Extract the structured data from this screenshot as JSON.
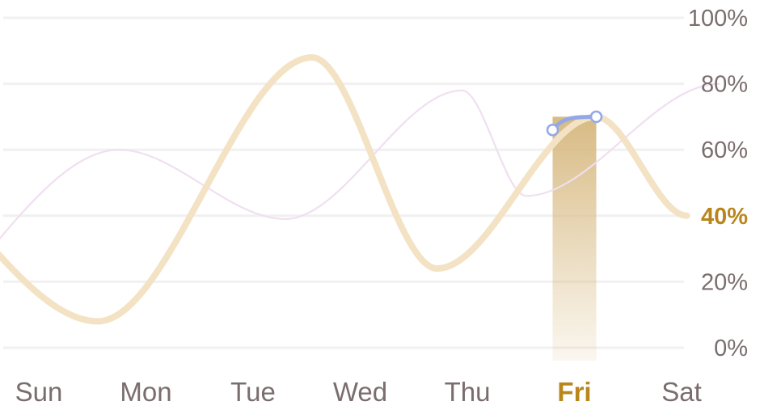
{
  "chart_data": {
    "type": "line",
    "title": "",
    "xlabel": "",
    "ylabel": "",
    "categories": [
      "Sun",
      "Mon",
      "Tue",
      "Wed",
      "Thu",
      "Fri",
      "Sat"
    ],
    "y_ticks": [
      "0%",
      "20%",
      "40%",
      "60%",
      "80%",
      "100%"
    ],
    "ylim": [
      0,
      100
    ],
    "grid": true,
    "highlight": {
      "category": "Fri",
      "tick": "40%",
      "start_value": 66,
      "end_value": 70
    },
    "series": [
      {
        "color": "#f3e3c4",
        "style": "thick",
        "points": [
          {
            "x": -0.7,
            "y": 40
          },
          {
            "x": 0.55,
            "y": 8
          },
          {
            "x": 2.55,
            "y": 88
          },
          {
            "x": 3.72,
            "y": 24
          },
          {
            "x": 5.2,
            "y": 70
          },
          {
            "x": 6.05,
            "y": 40
          }
        ]
      },
      {
        "color": "#f0dff0",
        "style": "thin",
        "points": [
          {
            "x": -0.7,
            "y": 20
          },
          {
            "x": 0.75,
            "y": 60
          },
          {
            "x": 2.3,
            "y": 39
          },
          {
            "x": 3.95,
            "y": 78
          },
          {
            "x": 4.55,
            "y": 46
          },
          {
            "x": 6.35,
            "y": 80
          }
        ]
      }
    ],
    "colors": {
      "grid": "#f2f0f0",
      "tick_text": "#7a6d6d",
      "highlight_text": "#b8861c",
      "highlight_bar": "#dcc18e",
      "highlight_segment": "#93a9e6"
    }
  }
}
